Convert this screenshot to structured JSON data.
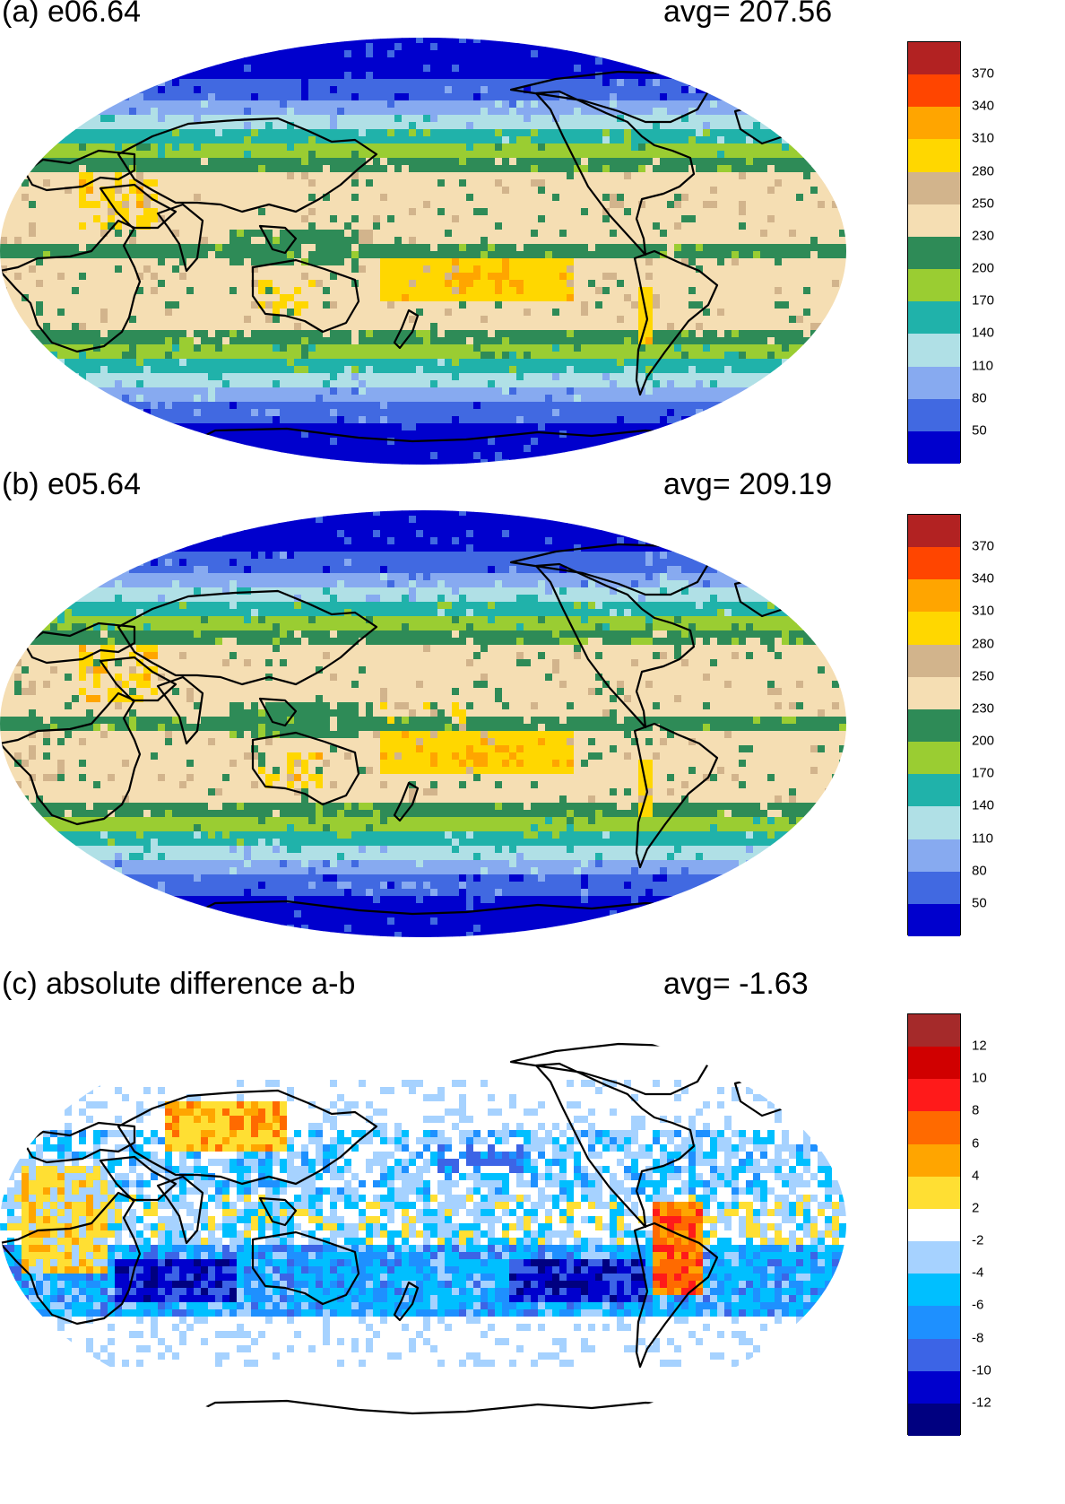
{
  "panels": [
    {
      "id": "a",
      "title": "(a) e06.64",
      "avg": "avg=  207.56",
      "field": "seq",
      "colorbar": {
        "colors": [
          "#b22222",
          "#ff4500",
          "#ffa500",
          "#ffd700",
          "#d2b48c",
          "#f5deb3",
          "#2e8b57",
          "#9acd32",
          "#20b2aa",
          "#b0e0e6",
          "#87aaf0",
          "#4169e1",
          "#0000cd"
        ],
        "labels": [
          "370",
          "340",
          "310",
          "280",
          "250",
          "230",
          "200",
          "170",
          "140",
          "110",
          "80",
          "50"
        ]
      }
    },
    {
      "id": "b",
      "title": "(b) e05.64",
      "avg": "avg=  209.19",
      "field": "seq",
      "colorbar": {
        "colors": [
          "#b22222",
          "#ff4500",
          "#ffa500",
          "#ffd700",
          "#d2b48c",
          "#f5deb3",
          "#2e8b57",
          "#9acd32",
          "#20b2aa",
          "#b0e0e6",
          "#87aaf0",
          "#4169e1",
          "#0000cd"
        ],
        "labels": [
          "370",
          "340",
          "310",
          "280",
          "250",
          "230",
          "200",
          "170",
          "140",
          "110",
          "80",
          "50"
        ]
      }
    },
    {
      "id": "c",
      "title": "(c) absolute difference a-b",
      "avg": "avg=   -1.63",
      "field": "diff",
      "colorbar": {
        "colors": [
          "#a52a2a",
          "#d00000",
          "#ff1a1a",
          "#ff6a00",
          "#ffa500",
          "#ffdf33",
          "#ffffff",
          "#a6d2ff",
          "#00bfff",
          "#1e90ff",
          "#3c64e6",
          "#0000cd",
          "#000080"
        ],
        "labels": [
          "12",
          "10",
          "8",
          "6",
          "4",
          "2",
          "-2",
          "-4",
          "-6",
          "-8",
          "-10",
          "-12"
        ]
      }
    }
  ]
}
